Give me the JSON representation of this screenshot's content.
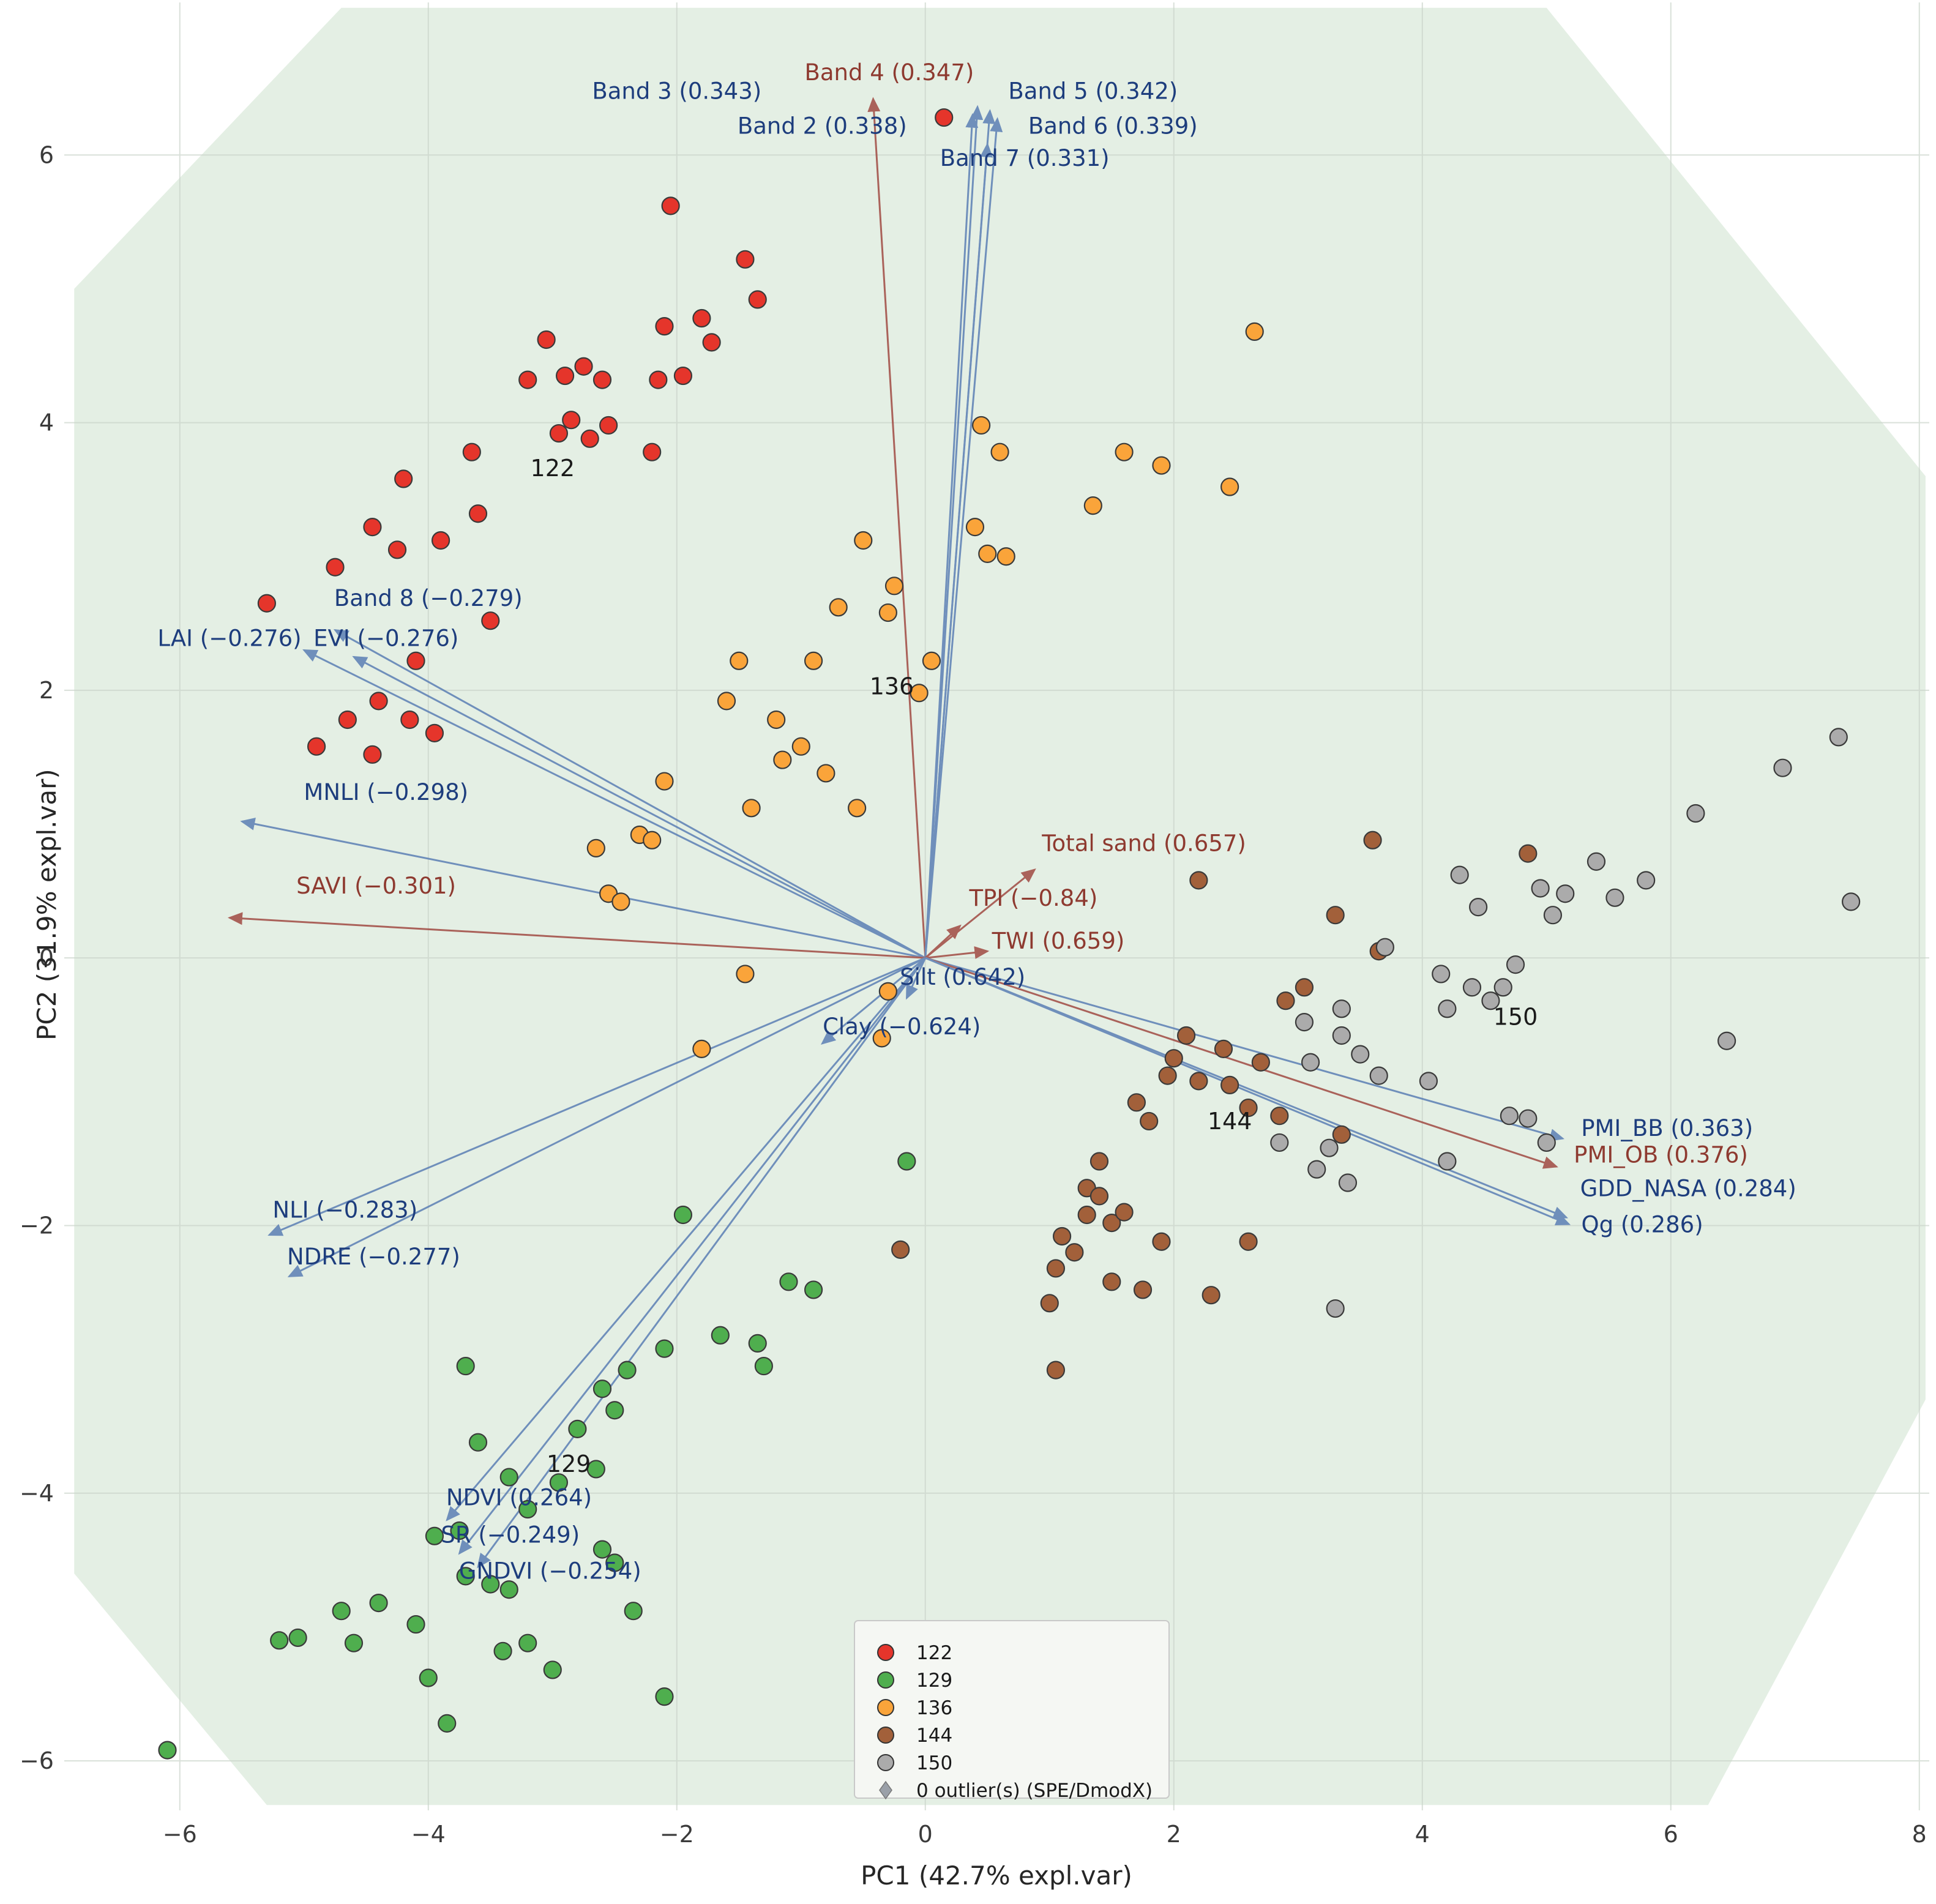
{
  "chart_data": {
    "type": "scatter",
    "title": "",
    "xlabel": "PC1 (42.7% expl.var)",
    "ylabel": "PC2 (31.9% expl.var)",
    "xlim": [
      -6.93,
      8.08
    ],
    "ylim": [
      -6.37,
      7.14
    ],
    "grid": true,
    "xticks": {
      "values": [
        -6,
        -4,
        -2,
        0,
        2,
        4,
        6,
        8
      ],
      "labels": [
        "−6",
        "−4",
        "−2",
        "0",
        "2",
        "4",
        "6",
        "8"
      ]
    },
    "yticks": {
      "values": [
        -6,
        -4,
        -2,
        0,
        2,
        4,
        6
      ],
      "labels": [
        "−6",
        "−4",
        "−2",
        "0",
        "2",
        "4",
        "6"
      ]
    },
    "hull": [
      [
        -6.85,
        5.0
      ],
      [
        -4.7,
        7.1
      ],
      [
        5.0,
        7.1
      ],
      [
        8.05,
        3.6
      ],
      [
        8.05,
        -3.3
      ],
      [
        6.3,
        -6.33
      ],
      [
        -5.3,
        -6.33
      ],
      [
        -6.85,
        -4.6
      ]
    ],
    "style": {
      "hull_fill": "#e4efe4",
      "grid_color": "#c9d3c9",
      "point_edge": "#3a3a3a",
      "tick_color": "#3a3a3a",
      "cluster_label_color": "#1a1a1a",
      "vector_colors": {
        "blue": "#5b7fb4",
        "darkred": "#a04a42"
      },
      "label_colors": {
        "blue": "#1d3d7d",
        "darkred": "#8e3a30"
      },
      "legend_bg": "#f5f7f3",
      "legend_border": "#c9c9c9"
    },
    "clusters": [
      {
        "name": "122",
        "color": "#e5352b",
        "points": [
          [
            0.15,
            6.28
          ],
          [
            -2.05,
            5.62
          ],
          [
            -1.45,
            5.22
          ],
          [
            -1.35,
            4.92
          ],
          [
            -2.1,
            4.72
          ],
          [
            -1.8,
            4.78
          ],
          [
            -1.72,
            4.6
          ],
          [
            -3.05,
            4.62
          ],
          [
            -2.75,
            4.42
          ],
          [
            -2.6,
            4.32
          ],
          [
            -3.2,
            4.32
          ],
          [
            -2.9,
            4.35
          ],
          [
            -2.15,
            4.32
          ],
          [
            -1.95,
            4.35
          ],
          [
            -2.85,
            4.02
          ],
          [
            -2.95,
            3.92
          ],
          [
            -2.7,
            3.88
          ],
          [
            -2.55,
            3.98
          ],
          [
            -2.2,
            3.78
          ],
          [
            -3.65,
            3.78
          ],
          [
            -4.2,
            3.58
          ],
          [
            -3.6,
            3.32
          ],
          [
            -4.45,
            3.22
          ],
          [
            -4.25,
            3.05
          ],
          [
            -3.9,
            3.12
          ],
          [
            -4.75,
            2.92
          ],
          [
            -5.3,
            2.65
          ],
          [
            -3.5,
            2.52
          ],
          [
            -4.1,
            2.22
          ],
          [
            -4.4,
            1.92
          ],
          [
            -4.15,
            1.78
          ],
          [
            -4.65,
            1.78
          ],
          [
            -4.9,
            1.58
          ],
          [
            -4.45,
            1.52
          ],
          [
            -3.95,
            1.68
          ]
        ]
      },
      {
        "name": "129",
        "color": "#4fae4e",
        "points": [
          [
            -0.15,
            -1.52
          ],
          [
            -1.95,
            -1.92
          ],
          [
            -1.1,
            -2.42
          ],
          [
            -0.9,
            -2.48
          ],
          [
            -1.65,
            -2.82
          ],
          [
            -1.35,
            -2.88
          ],
          [
            -1.3,
            -3.05
          ],
          [
            -2.1,
            -2.92
          ],
          [
            -2.4,
            -3.08
          ],
          [
            -2.6,
            -3.22
          ],
          [
            -2.5,
            -3.38
          ],
          [
            -3.7,
            -3.05
          ],
          [
            -3.6,
            -3.62
          ],
          [
            -2.8,
            -3.52
          ],
          [
            -2.65,
            -3.82
          ],
          [
            -3.35,
            -3.88
          ],
          [
            -2.95,
            -3.92
          ],
          [
            -3.2,
            -4.12
          ],
          [
            -3.75,
            -4.28
          ],
          [
            -3.95,
            -4.32
          ],
          [
            -2.6,
            -4.42
          ],
          [
            -2.5,
            -4.52
          ],
          [
            -3.5,
            -4.68
          ],
          [
            -3.7,
            -4.62
          ],
          [
            -3.35,
            -4.72
          ],
          [
            -2.35,
            -4.88
          ],
          [
            -4.1,
            -4.98
          ],
          [
            -4.4,
            -4.82
          ],
          [
            -4.7,
            -4.88
          ],
          [
            -4.6,
            -5.12
          ],
          [
            -5.05,
            -5.08
          ],
          [
            -5.2,
            -5.1
          ],
          [
            -3.2,
            -5.12
          ],
          [
            -3.4,
            -5.18
          ],
          [
            -3.0,
            -5.32
          ],
          [
            -4.0,
            -5.38
          ],
          [
            -2.1,
            -5.52
          ],
          [
            -3.85,
            -5.72
          ],
          [
            -6.1,
            -5.92
          ]
        ]
      },
      {
        "name": "136",
        "color": "#faa43a",
        "points": [
          [
            2.65,
            4.68
          ],
          [
            0.45,
            3.98
          ],
          [
            0.6,
            3.78
          ],
          [
            1.6,
            3.78
          ],
          [
            1.9,
            3.68
          ],
          [
            2.45,
            3.52
          ],
          [
            1.35,
            3.38
          ],
          [
            0.4,
            3.22
          ],
          [
            -0.5,
            3.12
          ],
          [
            0.5,
            3.02
          ],
          [
            0.65,
            3.0
          ],
          [
            -0.25,
            2.78
          ],
          [
            -0.7,
            2.62
          ],
          [
            -0.3,
            2.58
          ],
          [
            0.05,
            2.22
          ],
          [
            -0.9,
            2.22
          ],
          [
            -1.5,
            2.22
          ],
          [
            -0.05,
            1.98
          ],
          [
            -1.6,
            1.92
          ],
          [
            -1.2,
            1.78
          ],
          [
            -1.0,
            1.58
          ],
          [
            -1.15,
            1.48
          ],
          [
            -0.8,
            1.38
          ],
          [
            -2.1,
            1.32
          ],
          [
            -0.55,
            1.12
          ],
          [
            -1.4,
            1.12
          ],
          [
            -2.3,
            0.92
          ],
          [
            -2.2,
            0.88
          ],
          [
            -2.65,
            0.82
          ],
          [
            -2.55,
            0.48
          ],
          [
            -2.45,
            0.42
          ],
          [
            -1.45,
            -0.12
          ],
          [
            -0.3,
            -0.25
          ],
          [
            -1.8,
            -0.68
          ],
          [
            -0.35,
            -0.6
          ]
        ]
      },
      {
        "name": "144",
        "color": "#a2603a",
        "points": [
          [
            3.6,
            0.88
          ],
          [
            2.2,
            0.58
          ],
          [
            4.85,
            0.78
          ],
          [
            3.3,
            0.32
          ],
          [
            3.65,
            0.05
          ],
          [
            2.9,
            -0.32
          ],
          [
            2.1,
            -0.58
          ],
          [
            2.4,
            -0.68
          ],
          [
            2.7,
            -0.78
          ],
          [
            1.95,
            -0.88
          ],
          [
            2.2,
            -0.92
          ],
          [
            1.7,
            -1.08
          ],
          [
            1.8,
            -1.22
          ],
          [
            2.6,
            -1.12
          ],
          [
            2.85,
            -1.18
          ],
          [
            3.35,
            -1.32
          ],
          [
            1.4,
            -1.52
          ],
          [
            1.3,
            -1.72
          ],
          [
            1.4,
            -1.78
          ],
          [
            1.3,
            -1.92
          ],
          [
            1.5,
            -1.98
          ],
          [
            1.1,
            -2.08
          ],
          [
            1.9,
            -2.12
          ],
          [
            2.6,
            -2.12
          ],
          [
            1.05,
            -2.32
          ],
          [
            1.5,
            -2.42
          ],
          [
            1.75,
            -2.48
          ],
          [
            2.3,
            -2.52
          ],
          [
            1.0,
            -2.58
          ],
          [
            1.05,
            -3.08
          ],
          [
            -0.2,
            -2.18
          ],
          [
            3.05,
            -0.22
          ],
          [
            2.45,
            -0.95
          ],
          [
            2.0,
            -0.75
          ],
          [
            1.6,
            -1.9
          ],
          [
            1.2,
            -2.2
          ]
        ]
      },
      {
        "name": "150",
        "color": "#ababab",
        "points": [
          [
            7.35,
            1.65
          ],
          [
            6.9,
            1.42
          ],
          [
            6.2,
            1.08
          ],
          [
            5.4,
            0.72
          ],
          [
            7.45,
            0.42
          ],
          [
            5.8,
            0.58
          ],
          [
            4.3,
            0.62
          ],
          [
            4.95,
            0.52
          ],
          [
            5.15,
            0.48
          ],
          [
            5.05,
            0.32
          ],
          [
            4.45,
            0.38
          ],
          [
            3.7,
            0.08
          ],
          [
            4.15,
            -0.12
          ],
          [
            4.4,
            -0.22
          ],
          [
            4.55,
            -0.32
          ],
          [
            4.2,
            -0.38
          ],
          [
            3.35,
            -0.38
          ],
          [
            3.05,
            -0.48
          ],
          [
            3.35,
            -0.58
          ],
          [
            3.5,
            -0.72
          ],
          [
            3.1,
            -0.78
          ],
          [
            3.65,
            -0.88
          ],
          [
            4.05,
            -0.92
          ],
          [
            4.65,
            -0.22
          ],
          [
            3.25,
            -1.42
          ],
          [
            3.15,
            -1.58
          ],
          [
            3.4,
            -1.68
          ],
          [
            4.2,
            -1.52
          ],
          [
            4.7,
            -1.18
          ],
          [
            5.0,
            -1.38
          ],
          [
            2.85,
            -1.38
          ],
          [
            3.3,
            -2.62
          ],
          [
            6.45,
            -0.62
          ],
          [
            4.85,
            -1.2
          ],
          [
            5.55,
            0.45
          ],
          [
            4.75,
            -0.05
          ]
        ]
      }
    ],
    "cluster_labels": [
      {
        "text": "122",
        "x": -3.0,
        "y": 3.6
      },
      {
        "text": "136",
        "x": -0.27,
        "y": 1.97
      },
      {
        "text": "129",
        "x": -2.87,
        "y": -3.84
      },
      {
        "text": "144",
        "x": 2.45,
        "y": -1.28
      },
      {
        "text": "150",
        "x": 4.75,
        "y": -0.5
      }
    ],
    "vectors": [
      {
        "label": "Band 4 (0.347)",
        "color": "darkred",
        "tip": [
          -0.42,
          6.42
        ],
        "label_pos": [
          -0.29,
          6.56
        ]
      },
      {
        "label": "Band 3 (0.343)",
        "color": "blue",
        "tip": [
          0.42,
          6.36
        ],
        "label_pos": [
          -2.0,
          6.42
        ]
      },
      {
        "label": "Band 2 (0.338)",
        "color": "blue",
        "tip": [
          0.38,
          6.3
        ],
        "label_pos": [
          -0.83,
          6.16
        ]
      },
      {
        "label": "Band 5 (0.342)",
        "color": "blue",
        "tip": [
          0.52,
          6.33
        ],
        "label_pos": [
          1.35,
          6.42
        ]
      },
      {
        "label": "Band 6 (0.339)",
        "color": "blue",
        "tip": [
          0.58,
          6.27
        ],
        "label_pos": [
          1.51,
          6.16
        ]
      },
      {
        "label": "Band 7 (0.331)",
        "color": "blue",
        "tip": [
          0.5,
          6.08
        ],
        "label_pos": [
          0.8,
          5.92
        ]
      },
      {
        "label": "Band 8 (−0.279)",
        "color": "blue",
        "tip": [
          -4.75,
          2.45
        ],
        "label_pos": [
          -4.0,
          2.63
        ]
      },
      {
        "label": "LAI (−0.276)",
        "color": "blue",
        "tip": [
          -5.0,
          2.3
        ],
        "label_pos": [
          -5.6,
          2.33
        ]
      },
      {
        "label": "EVI (−0.276)",
        "color": "blue",
        "tip": [
          -4.6,
          2.25
        ],
        "label_pos": [
          -4.34,
          2.33
        ]
      },
      {
        "label": "MNLI (−0.298)",
        "color": "blue",
        "tip": [
          -5.5,
          1.02
        ],
        "label_pos": [
          -4.34,
          1.18
        ]
      },
      {
        "label": "SAVI (−0.301)",
        "color": "darkred",
        "tip": [
          -5.6,
          0.3
        ],
        "label_pos": [
          -4.42,
          0.48
        ]
      },
      {
        "label": "NLI (−0.283)",
        "color": "blue",
        "tip": [
          -5.28,
          -2.07
        ],
        "label_pos": [
          -4.67,
          -1.94
        ]
      },
      {
        "label": "NDRE (−0.277)",
        "color": "blue",
        "tip": [
          -5.12,
          -2.38
        ],
        "label_pos": [
          -4.44,
          -2.29
        ]
      },
      {
        "label": "NDVI (0.264)",
        "color": "blue",
        "tip": [
          -3.85,
          -4.2
        ],
        "label_pos": [
          -3.27,
          -4.09
        ]
      },
      {
        "label": "SR (−0.249)",
        "color": "blue",
        "tip": [
          -3.75,
          -4.45
        ],
        "label_pos": [
          -3.34,
          -4.37
        ]
      },
      {
        "label": "GNDVI (−0.254)",
        "color": "blue",
        "tip": [
          -3.6,
          -4.55
        ],
        "label_pos": [
          -3.02,
          -4.64
        ]
      },
      {
        "label": "Total sand (0.657)",
        "color": "darkred",
        "tip": [
          0.88,
          0.66
        ],
        "label_pos": [
          1.76,
          0.8
        ]
      },
      {
        "label": "TPI (−0.84)",
        "color": "darkred",
        "tip": [
          0.28,
          0.24
        ],
        "label_pos": [
          0.87,
          0.39
        ]
      },
      {
        "label": "TWI (0.659)",
        "color": "darkred",
        "tip": [
          0.5,
          0.05
        ],
        "label_pos": [
          1.07,
          0.07
        ]
      },
      {
        "label": "Silt (0.642)",
        "color": "blue",
        "tip": [
          -0.15,
          -0.3
        ],
        "label_pos": [
          0.3,
          -0.2
        ]
      },
      {
        "label": "Clay (−0.624)",
        "color": "blue",
        "tip": [
          -0.83,
          -0.64
        ],
        "label_pos": [
          -0.19,
          -0.57
        ]
      },
      {
        "label": "PMI_BB (0.363)",
        "color": "blue",
        "tip": [
          5.13,
          -1.35
        ],
        "label_pos": [
          5.97,
          -1.33
        ]
      },
      {
        "label": "PMI_OB (0.376)",
        "color": "darkred",
        "tip": [
          5.08,
          -1.56
        ],
        "label_pos": [
          5.92,
          -1.53
        ]
      },
      {
        "label": "GDD_NASA (0.284)",
        "color": "blue",
        "tip": [
          5.16,
          -1.94
        ],
        "label_pos": [
          6.14,
          -1.78
        ]
      },
      {
        "label": "Qg (0.286)",
        "color": "blue",
        "tip": [
          5.18,
          -1.99
        ],
        "label_pos": [
          5.77,
          -2.05
        ]
      }
    ],
    "legend": {
      "entries": [
        {
          "label": "122",
          "color": "#e5352b",
          "marker": "circle"
        },
        {
          "label": "129",
          "color": "#4fae4e",
          "marker": "circle"
        },
        {
          "label": "136",
          "color": "#faa43a",
          "marker": "circle"
        },
        {
          "label": "144",
          "color": "#a2603a",
          "marker": "circle"
        },
        {
          "label": "150",
          "color": "#ababab",
          "marker": "circle"
        },
        {
          "label": "0 outlier(s) (SPE/DmodX)",
          "color": "#9aa0a8",
          "marker": "diamond"
        }
      ]
    }
  }
}
